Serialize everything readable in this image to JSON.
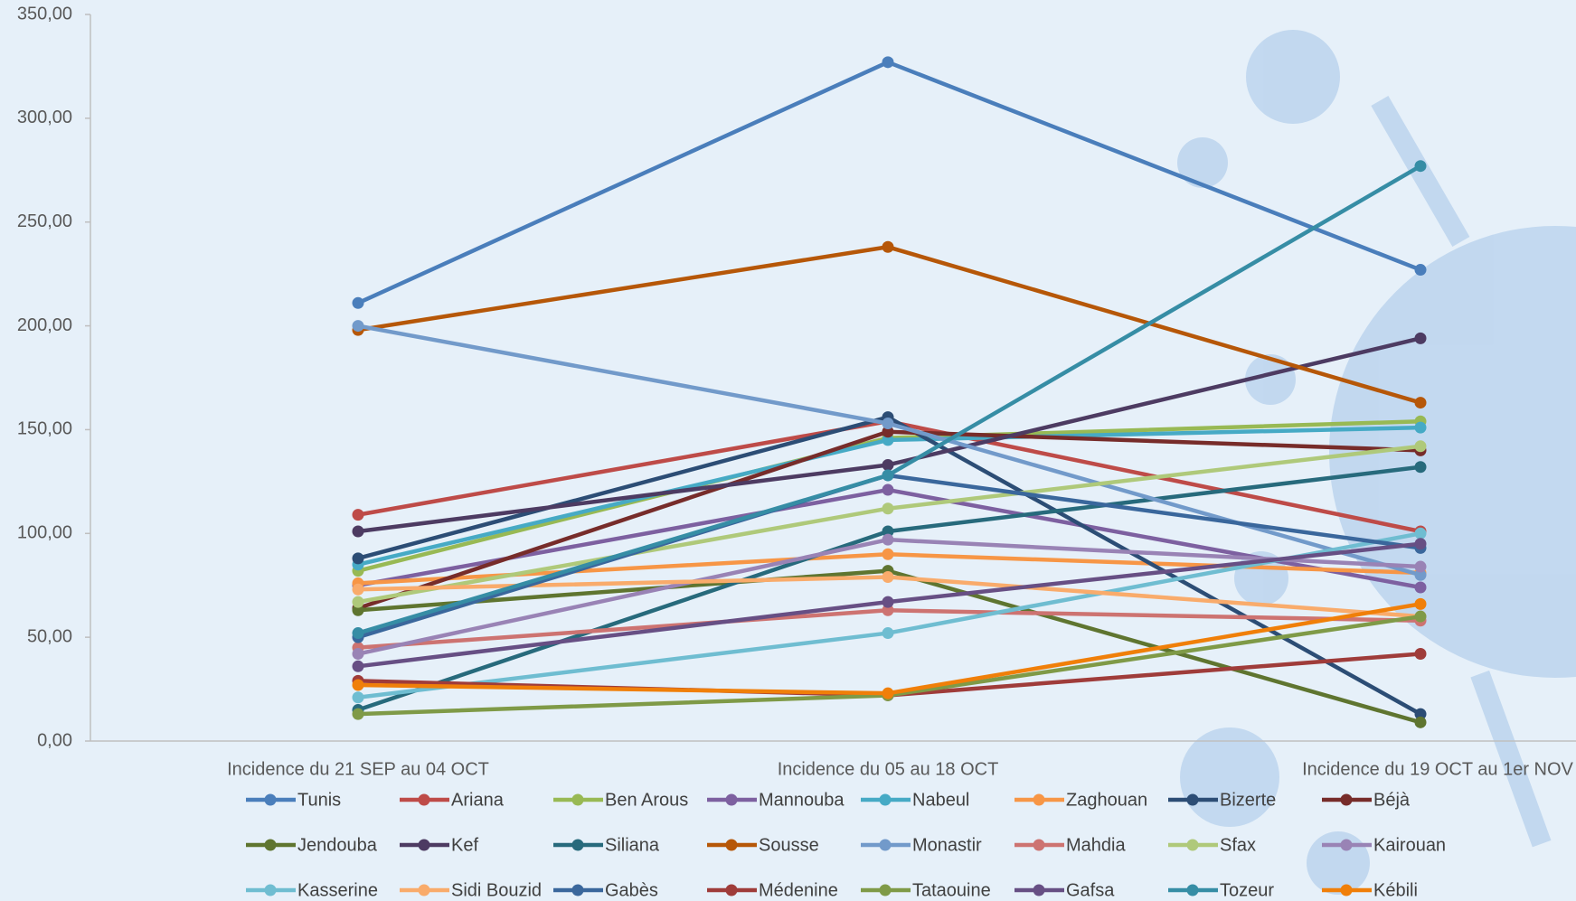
{
  "chart_data": {
    "type": "line",
    "categories": [
      "Incidence du 21 SEP au 04 OCT",
      "Incidence du 05 au 18 OCT",
      "Incidence du 19 OCT au 1er NOV"
    ],
    "ylim": [
      0,
      350
    ],
    "yticks": [
      {
        "value": 0,
        "label": "0,00"
      },
      {
        "value": 50,
        "label": "50,00"
      },
      {
        "value": 100,
        "label": "100,00"
      },
      {
        "value": 150,
        "label": "150,00"
      },
      {
        "value": 200,
        "label": "200,00"
      },
      {
        "value": 250,
        "label": "250,00"
      },
      {
        "value": 300,
        "label": "300,00"
      },
      {
        "value": 350,
        "label": "350,00"
      }
    ],
    "series": [
      {
        "name": "Tunis",
        "color": "#4a7ebb",
        "values": [
          211,
          327,
          227
        ]
      },
      {
        "name": "Ariana",
        "color": "#be4b48",
        "values": [
          109,
          154,
          101
        ]
      },
      {
        "name": "Ben Arous",
        "color": "#98b954",
        "values": [
          82,
          146,
          154
        ]
      },
      {
        "name": "Mannouba",
        "color": "#7d60a0",
        "values": [
          75,
          121,
          74
        ]
      },
      {
        "name": "Nabeul",
        "color": "#46aac5",
        "values": [
          85,
          145,
          151
        ]
      },
      {
        "name": "Zaghouan",
        "color": "#f79646",
        "values": [
          76,
          90,
          81
        ]
      },
      {
        "name": "Bizerte",
        "color": "#2c4d75",
        "values": [
          88,
          156,
          13
        ]
      },
      {
        "name": "Béjà",
        "color": "#772c2a",
        "values": [
          64,
          149,
          140
        ]
      },
      {
        "name": "Jendouba",
        "color": "#5f7530",
        "values": [
          63,
          82,
          9
        ]
      },
      {
        "name": "Kef",
        "color": "#4d3b62",
        "values": [
          101,
          133,
          194
        ]
      },
      {
        "name": "Siliana",
        "color": "#276a7c",
        "values": [
          15,
          101,
          132
        ]
      },
      {
        "name": "Sousse",
        "color": "#b65708",
        "values": [
          198,
          238,
          163
        ]
      },
      {
        "name": "Monastir",
        "color": "#729aca",
        "values": [
          200,
          153,
          80
        ]
      },
      {
        "name": "Mahdia",
        "color": "#cd7371",
        "values": [
          45,
          63,
          58
        ]
      },
      {
        "name": "Sfax",
        "color": "#afc97a",
        "values": [
          67,
          112,
          142
        ]
      },
      {
        "name": "Kairouan",
        "color": "#9983b5",
        "values": [
          42,
          97,
          84
        ]
      },
      {
        "name": "Kasserine",
        "color": "#6fbdd1",
        "values": [
          21,
          52,
          100
        ]
      },
      {
        "name": "Sidi Bouzid",
        "color": "#f9ab6b",
        "values": [
          73,
          79,
          60
        ]
      },
      {
        "name": "Gabès",
        "color": "#3a679c",
        "values": [
          50,
          128,
          93
        ]
      },
      {
        "name": "Médenine",
        "color": "#9f3c3a",
        "values": [
          29,
          22,
          42
        ]
      },
      {
        "name": "Tataouine",
        "color": "#7f9a47",
        "values": [
          13,
          22,
          60
        ]
      },
      {
        "name": "Gafsa",
        "color": "#674f84",
        "values": [
          36,
          67,
          95
        ]
      },
      {
        "name": "Tozeur",
        "color": "#368da5",
        "values": [
          52,
          128,
          277
        ]
      },
      {
        "name": "Kébili",
        "color": "#f07f09",
        "values": [
          27,
          23,
          66
        ]
      }
    ]
  }
}
